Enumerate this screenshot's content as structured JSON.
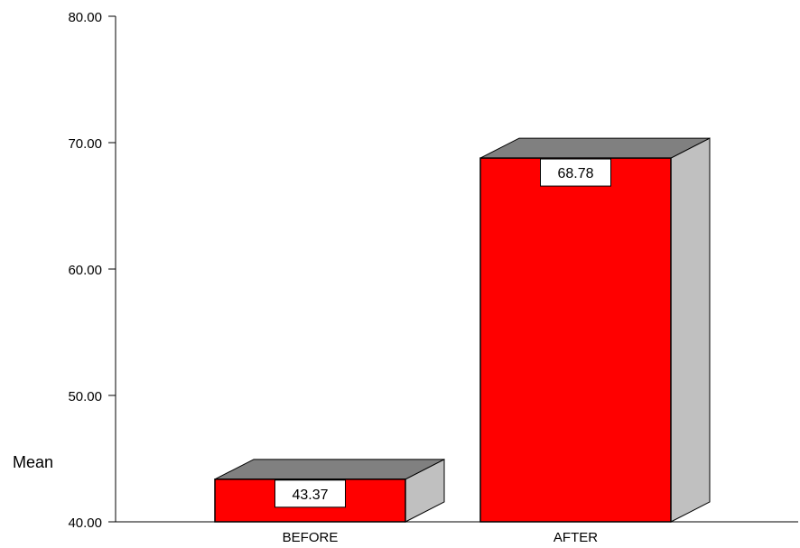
{
  "chart_data": {
    "type": "bar",
    "style": "3d",
    "categories": [
      "BEFORE",
      "AFTER"
    ],
    "values": [
      43.37,
      68.78
    ],
    "data_labels": [
      "43.37",
      "68.78"
    ],
    "ylabel": "Mean",
    "xlabel": "",
    "ylim": [
      40,
      80
    ],
    "yticks": [
      "40.00",
      "50.00",
      "60.00",
      "70.00",
      "80.00"
    ],
    "grid": false,
    "legend": "none"
  },
  "colors": {
    "bar_front": "#ff0000",
    "bar_top": "#808080",
    "bar_side": "#c0c0c0",
    "outline": "#000000",
    "label_box": "#ffffff"
  }
}
